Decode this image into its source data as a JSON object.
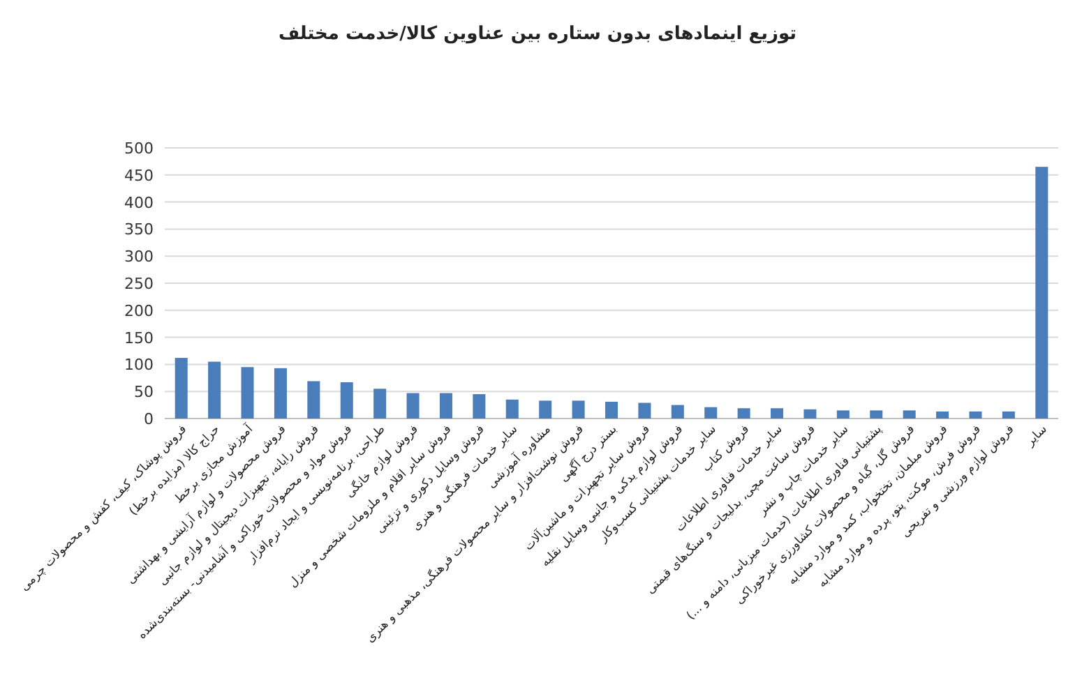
{
  "chart_data": {
    "type": "bar",
    "title": "توزیع اینمادهای بدون ستاره بین عناوین کالا/خدمت مختلف",
    "categories": [
      "فروش پوشاک، کیف، کفش و محصولات چرمی",
      "حراج کالا (مزایده برخط)",
      "آموزش مجازی برخط",
      "فروش محصولات و لوازم آرایشی و بهداشتی",
      "فروش رایانه، تجهیزات دیجیتال و لوازم جانبی",
      "فروش مواد و محصولات خوراکی و آشامیدنی- بسته‌بندی‌شده",
      "طراحی، برنامه‌نویسی و ایجاد نرم‌افزار",
      "فروش لوازم خانگی",
      "فروش سایر اقلام و ملزومات شخصی و منزل",
      "فروش وسایل دکوری و تزئینی",
      "سایر خدمات فرهنگی و هنری",
      "مشاوره آموزشی",
      "فروش نوشت‌افزار و سایر محصولات فرهنگی، مذهبی و هنری",
      "بستر درج آگهی",
      "فروش سایر تجهیزات و ماشین‌آلات",
      "فروش لوازم یدکی و جانبی وسایل نقلیه",
      "سایر خدمات پشتیبانی کسب‌وکار",
      "فروش کتاب",
      "سایر خدمات فناوری اطلاعات",
      "فروش ساعت مچی، بدلیجات و سنگ‌های قیمتی",
      "سایر خدمات چاپ و نشر",
      "پشتیبانی فناوری اطلاعات (خدمات میزبانی، دامنه و ...)",
      "فروش گل، گیاه و محصولات کشاورزی غیرخوراکی",
      "فروش مبلمان، تختخواب، کمد و موارد مشابه",
      "فروش فرش، موکت، پتو، پرده و موارد مشابه",
      "فروش لوازم ورزشی و تفریحی",
      "سایر"
    ],
    "values": [
      112,
      105,
      95,
      93,
      69,
      67,
      55,
      47,
      47,
      45,
      35,
      33,
      33,
      31,
      29,
      25,
      21,
      19,
      19,
      17,
      15,
      15,
      15,
      13,
      13,
      13,
      465
    ],
    "color": "#4a7ebb",
    "ylim": [
      0,
      500
    ],
    "yticks": [
      0,
      50,
      100,
      150,
      200,
      250,
      300,
      350,
      400,
      450,
      500
    ],
    "grid": "y"
  }
}
